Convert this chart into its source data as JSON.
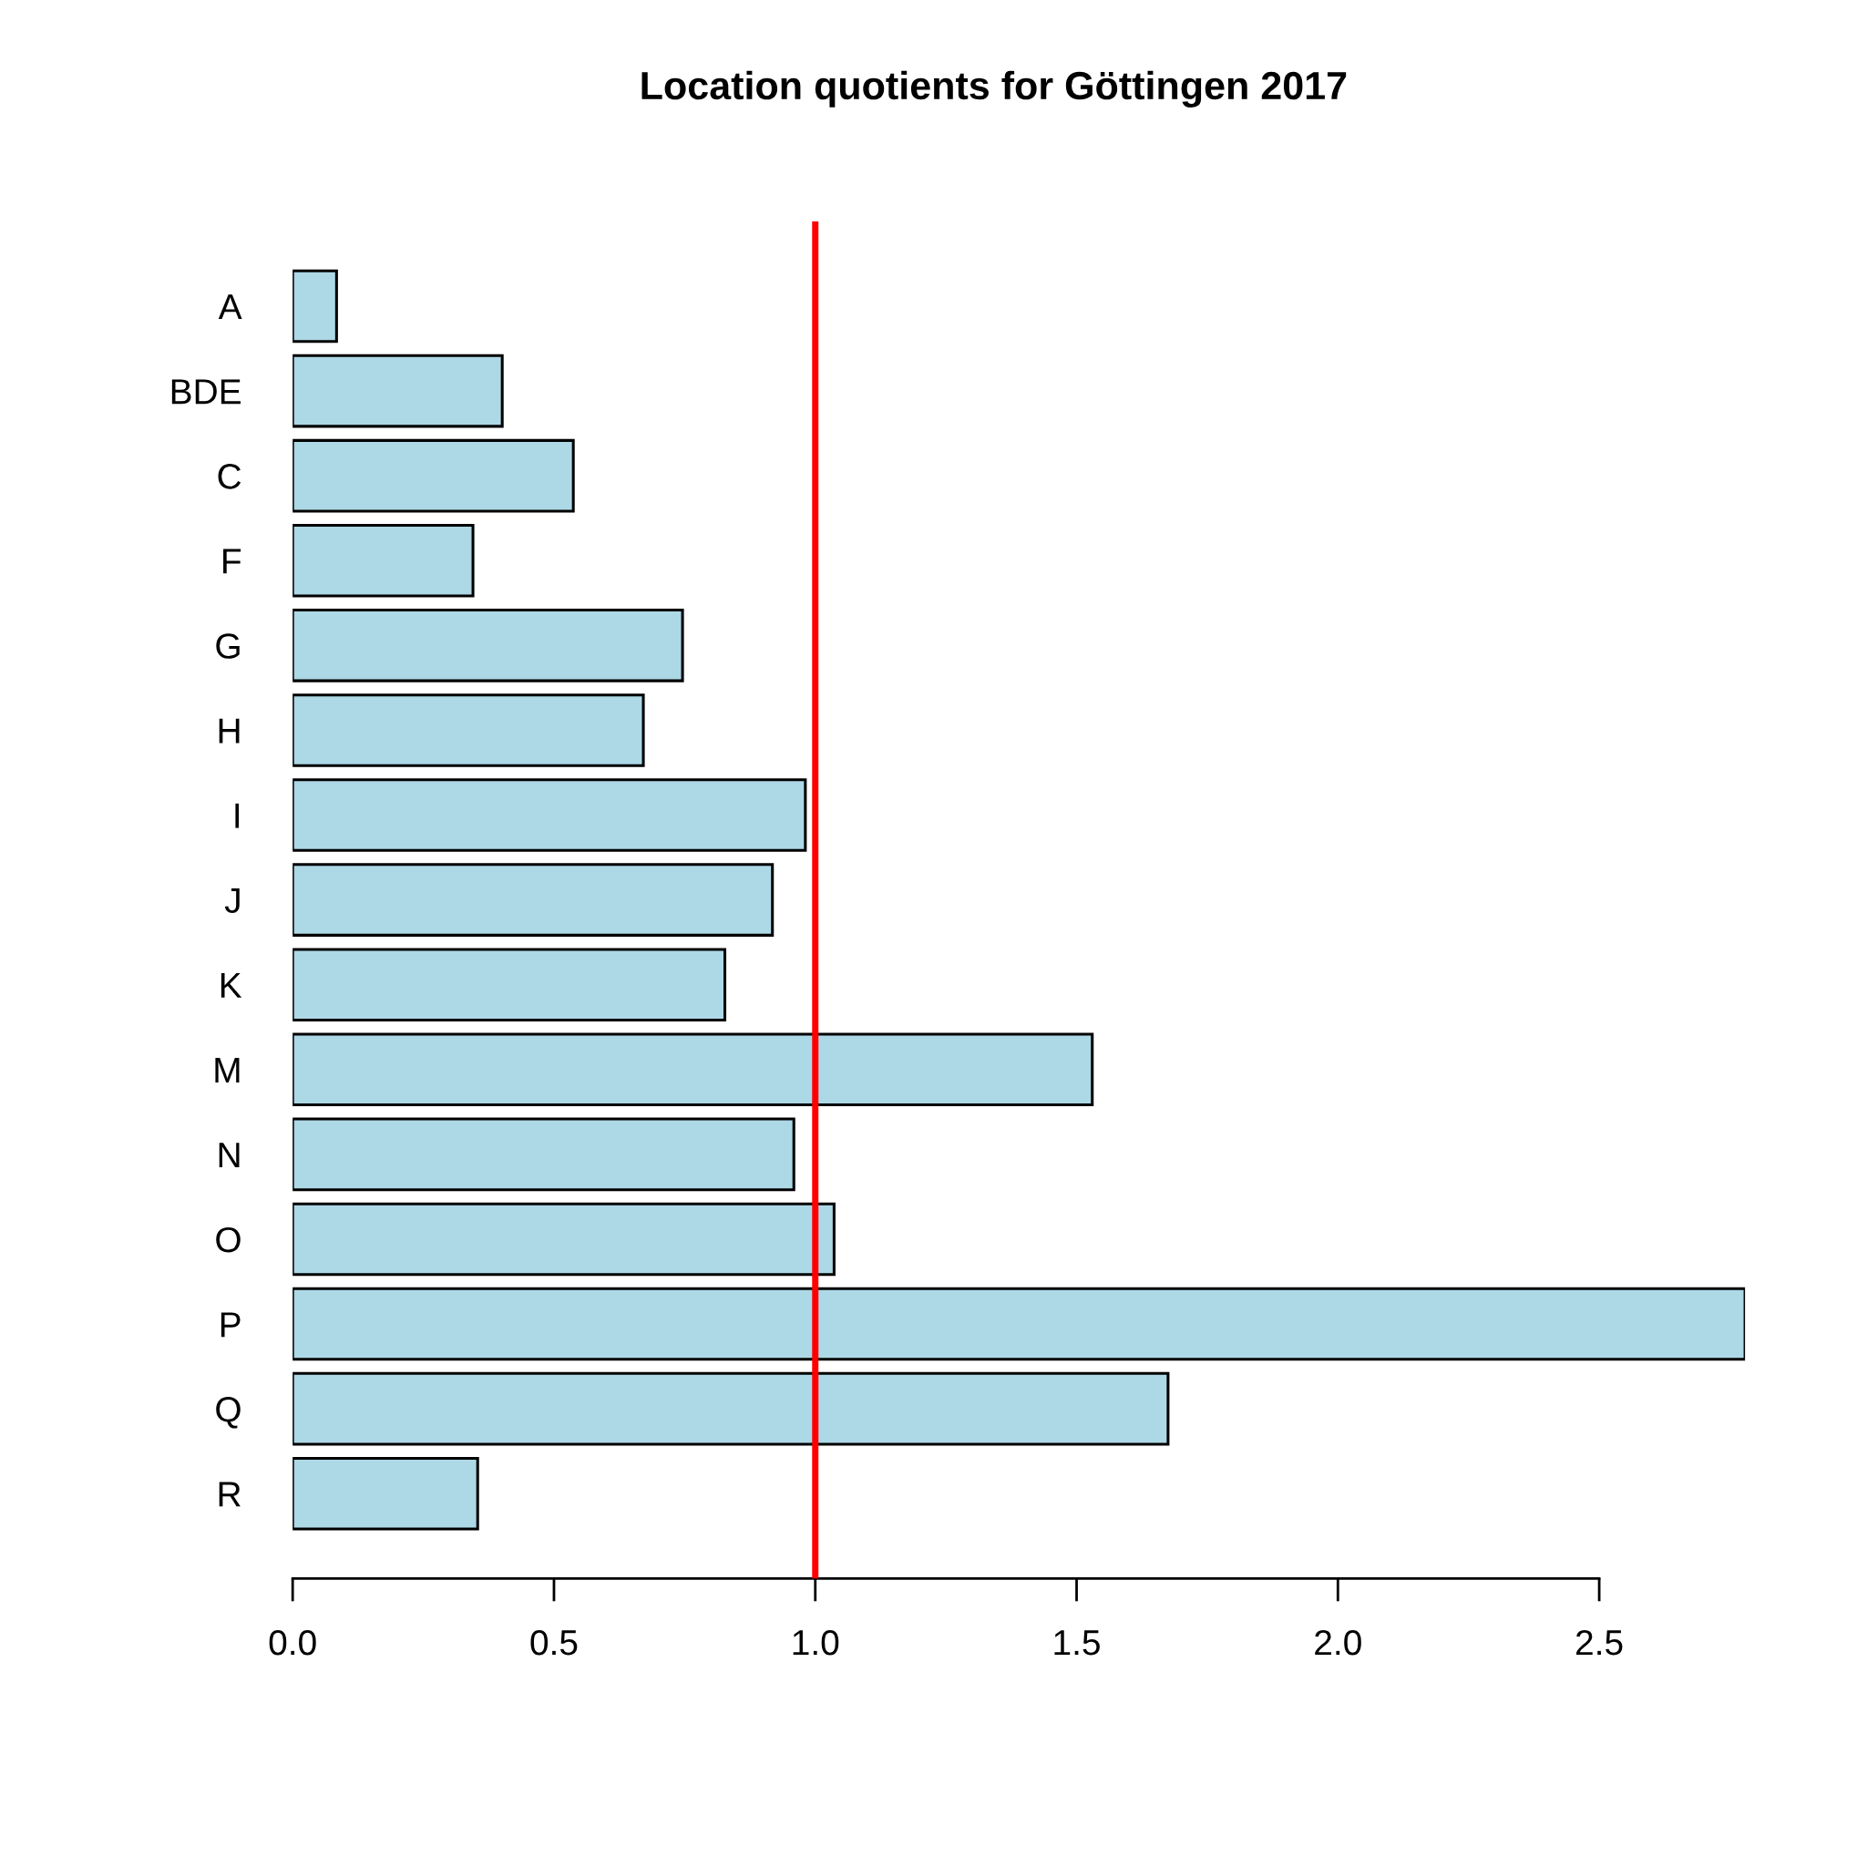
{
  "chart_data": {
    "type": "bar",
    "orientation": "horizontal",
    "title": "Location quotients for Göttingen 2017",
    "categories": [
      "A",
      "BDE",
      "C",
      "F",
      "G",
      "H",
      "I",
      "J",
      "K",
      "M",
      "N",
      "O",
      "P",
      "Q",
      "R"
    ],
    "values": [
      0.084,
      0.401,
      0.537,
      0.345,
      0.746,
      0.671,
      0.981,
      0.918,
      0.827,
      1.53,
      0.959,
      1.036,
      2.779,
      1.675,
      0.354
    ],
    "color": "#add8e6",
    "xlim": [
      0,
      2.779
    ],
    "xticks": [
      {
        "value": 0,
        "label": "0.0"
      },
      {
        "value": 0.5,
        "label": "0.5"
      },
      {
        "value": 1,
        "label": "1.0"
      },
      {
        "value": 1.5,
        "label": "1.5"
      },
      {
        "value": 2,
        "label": "2.0"
      },
      {
        "value": 2.5,
        "label": "2.5"
      }
    ],
    "ref_lines": [
      {
        "axis": "x",
        "value": 1,
        "color": "#ff0000"
      }
    ],
    "grid": false
  }
}
